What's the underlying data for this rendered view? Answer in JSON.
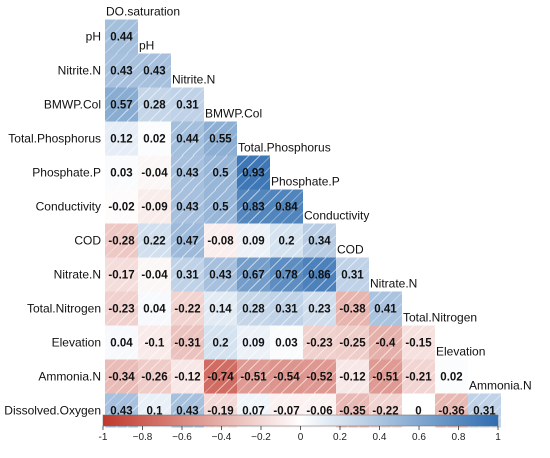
{
  "chart_data": {
    "type": "heatmap",
    "variables": [
      "DO.saturation",
      "pH",
      "Nitrite.N",
      "BMWP.Col",
      "Total.Phosphorus",
      "Phosphate.P",
      "Conductivity",
      "COD",
      "Nitrate.N",
      "Total.Nitrogen",
      "Elevation",
      "Ammonia.N",
      "Dissolved.Oxygen"
    ],
    "row_labels": [
      "pH",
      "Nitrite.N",
      "BMWP.Col",
      "Total.Phosphorus",
      "Phosphate.P",
      "Conductivity",
      "COD",
      "Nitrate.N",
      "Total.Nitrogen",
      "Elevation",
      "Ammonia.N",
      "Dissolved.Oxygen"
    ],
    "column_labels": [
      "DO.saturation",
      "pH",
      "Nitrite.N",
      "BMWP.Col",
      "Total.Phosphorus",
      "Phosphate.P",
      "Conductivity",
      "COD",
      "Nitrate.N",
      "Total.Nitrogen",
      "Elevation",
      "Ammonia.N"
    ],
    "matrix": [
      [
        0.44
      ],
      [
        0.43,
        0.43
      ],
      [
        0.57,
        0.28,
        0.31
      ],
      [
        0.12,
        0.02,
        0.44,
        0.55
      ],
      [
        0.03,
        -0.04,
        0.43,
        0.5,
        0.93
      ],
      [
        -0.02,
        -0.09,
        0.43,
        0.5,
        0.83,
        0.84
      ],
      [
        -0.28,
        0.22,
        0.47,
        -0.08,
        0.09,
        0.2,
        0.34
      ],
      [
        -0.17,
        -0.04,
        0.31,
        0.43,
        0.67,
        0.78,
        0.86,
        0.31
      ],
      [
        -0.23,
        0.04,
        -0.22,
        0.14,
        0.28,
        0.31,
        0.23,
        -0.38,
        0.41
      ],
      [
        0.04,
        -0.1,
        -0.31,
        0.2,
        0.09,
        0.03,
        -0.23,
        -0.25,
        -0.4,
        -0.15
      ],
      [
        -0.34,
        -0.26,
        -0.12,
        -0.74,
        -0.51,
        -0.54,
        -0.52,
        -0.12,
        -0.51,
        -0.21,
        0.02
      ],
      [
        0.43,
        0.1,
        0.43,
        -0.19,
        0.07,
        -0.07,
        -0.06,
        -0.35,
        -0.22,
        0,
        -0.36,
        0.31
      ]
    ],
    "colorbar": {
      "ticks": [
        -1,
        -0.8,
        -0.6,
        -0.4,
        -0.2,
        0,
        0.2,
        0.4,
        0.6,
        0.8,
        1
      ],
      "tick_labels": [
        "-1",
        "−0.8",
        "−0.6",
        "−0.4",
        "−0.2",
        "0",
        "0.2",
        "0.4",
        "0.6",
        "0.8",
        "1"
      ],
      "range": [
        -1,
        1
      ]
    },
    "colors": {
      "negative": "#c0392b",
      "neutral": "#ffffff",
      "positive": "#2f6db0"
    }
  }
}
